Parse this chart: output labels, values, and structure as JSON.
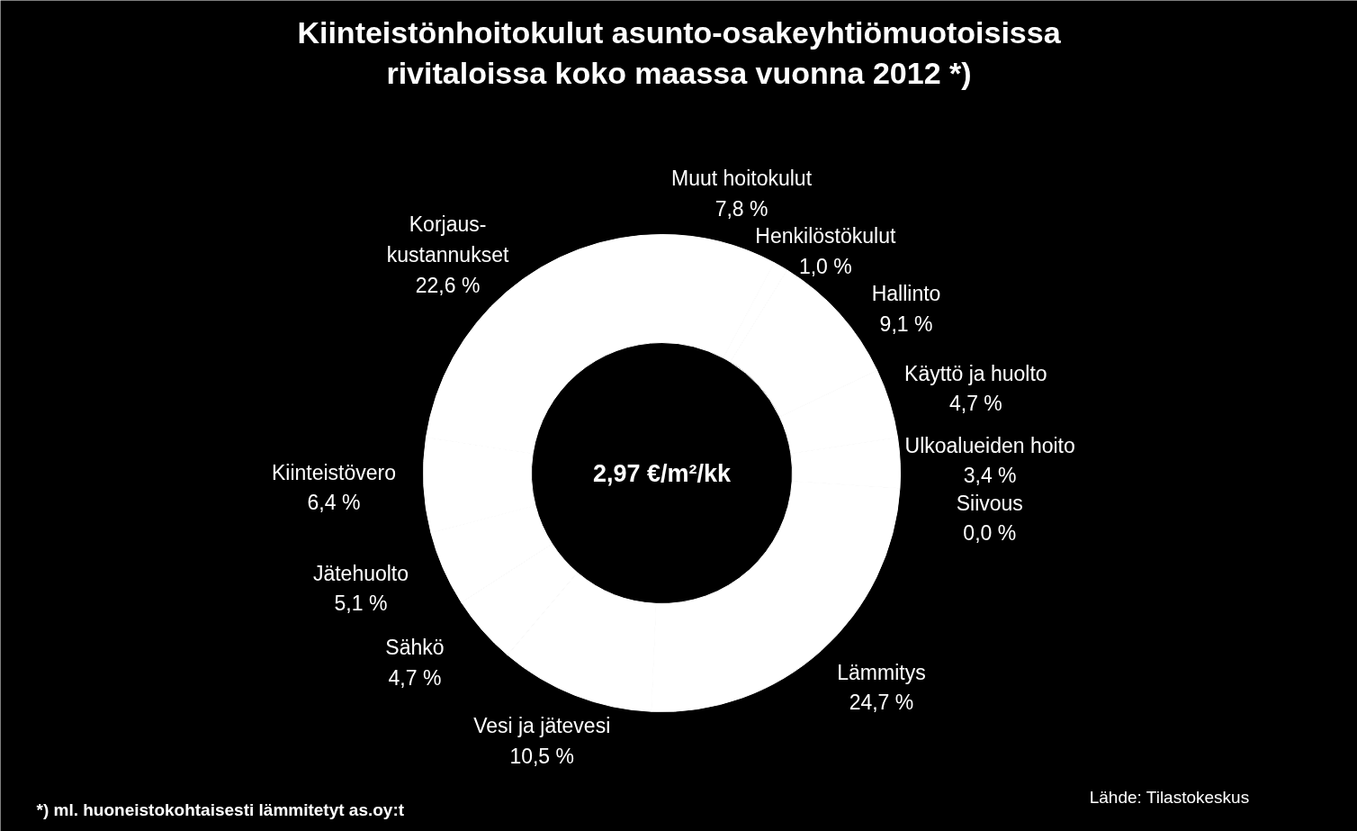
{
  "chart_data": {
    "type": "donut",
    "title": "Kiinteistönhoitokulut asunto-osakeyhtiömuotoisissa rivitaloissa koko maassa vuonna 2012 *)",
    "categories": [
      "Muut hoitokulut",
      "Henkilöstökulut",
      "Hallinto",
      "Käyttö ja huolto",
      "Ulkoalueiden hoito",
      "Siivous",
      "Lämmitys",
      "Vesi ja jätevesi",
      "Sähkö",
      "Jätehuolto",
      "Kiinteistövero",
      "Korjaus-kustannukset"
    ],
    "values": [
      7.8,
      1.0,
      9.1,
      4.7,
      3.4,
      0.0,
      24.7,
      10.5,
      4.7,
      5.1,
      6.4,
      22.6
    ],
    "value_labels": [
      "7,8 %",
      "1,0 %",
      "9,1 %",
      "4,7 %",
      "3,4 %",
      "0,0 %",
      "24,7 %",
      "10,5 %",
      "4,7 %",
      "5,1 %",
      "6,4 %",
      "22,6 %"
    ],
    "colors": [
      "#ffffff",
      "#ffffff",
      "#ffffff",
      "#ffffff",
      "#ffffff",
      "#ffffff",
      "#ffffff",
      "#ffffff",
      "#ffffff",
      "#ffffff",
      "#ffffff",
      "#ffffff"
    ],
    "annotations": [
      "2,97 €/m²/kk",
      "*) ml. huoneistokohtaisesti lämmitetyt as.oy:t",
      "Lähde: Tilastokeskus"
    ]
  }
}
